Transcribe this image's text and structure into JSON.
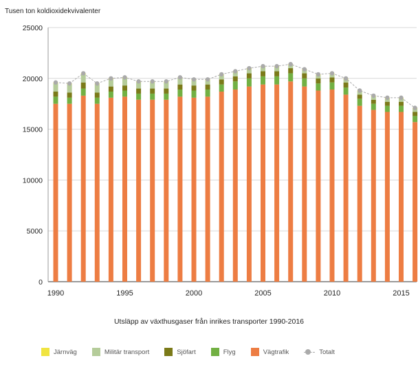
{
  "chart_data": {
    "type": "bar",
    "stacked": true,
    "title": "Utsläpp av växthusgaser från inrikes transporter 1990-2016",
    "ylabel": "Tusen ton koldioxidekvivalenter",
    "xlabel": "",
    "ylim": [
      0,
      25000
    ],
    "yticks": [
      0,
      5000,
      10000,
      15000,
      20000,
      25000
    ],
    "xtick_labels": [
      "1990",
      "1995",
      "2000",
      "2005",
      "2010",
      "2015"
    ],
    "grid": "horizontal",
    "legend_position": "bottom",
    "categories": [
      1990,
      1991,
      1992,
      1993,
      1994,
      1995,
      1996,
      1997,
      1998,
      1999,
      2000,
      2001,
      2002,
      2003,
      2004,
      2005,
      2006,
      2007,
      2008,
      2009,
      2010,
      2011,
      2012,
      2013,
      2014,
      2015,
      2016
    ],
    "series": [
      {
        "name": "Vägtrafik",
        "color": "#ed7d43",
        "values": [
          17500,
          17500,
          18300,
          17500,
          18100,
          18200,
          17900,
          17900,
          17900,
          18200,
          18100,
          18200,
          18700,
          18900,
          19200,
          19400,
          19400,
          19700,
          19200,
          18800,
          18900,
          18400,
          17300,
          16900,
          16700,
          16700,
          15700
        ]
      },
      {
        "name": "Flyg",
        "color": "#72b043",
        "values": [
          700,
          600,
          700,
          600,
          600,
          600,
          600,
          600,
          600,
          700,
          700,
          700,
          700,
          800,
          800,
          800,
          800,
          800,
          800,
          700,
          700,
          700,
          700,
          600,
          600,
          600,
          600
        ]
      },
      {
        "name": "Sjöfart",
        "color": "#7b7a19",
        "values": [
          500,
          500,
          600,
          500,
          500,
          500,
          500,
          500,
          500,
          500,
          500,
          500,
          500,
          500,
          500,
          500,
          500,
          500,
          500,
          500,
          500,
          500,
          400,
          400,
          400,
          400,
          400
        ]
      },
      {
        "name": "Militär transport",
        "color": "#b5cc9a",
        "values": [
          800,
          800,
          800,
          800,
          700,
          700,
          600,
          600,
          600,
          600,
          500,
          400,
          400,
          400,
          400,
          400,
          400,
          300,
          300,
          300,
          300,
          300,
          300,
          300,
          300,
          300,
          300
        ]
      },
      {
        "name": "Järnväg",
        "color": "#f0e441",
        "values": [
          100,
          100,
          100,
          100,
          100,
          100,
          100,
          100,
          100,
          100,
          100,
          100,
          100,
          100,
          100,
          100,
          100,
          100,
          100,
          100,
          100,
          100,
          100,
          100,
          100,
          100,
          100
        ]
      }
    ],
    "total": {
      "name": "Totalt",
      "color": "#aaaaaa",
      "values": [
        19600,
        19500,
        20500,
        19500,
        20000,
        20100,
        19700,
        19700,
        19700,
        20100,
        19900,
        19900,
        20400,
        20700,
        21000,
        21200,
        21200,
        21400,
        20900,
        20400,
        20500,
        20000,
        18800,
        18300,
        18100,
        18100,
        17100
      ]
    },
    "legend": [
      "Järnväg",
      "Militär transport",
      "Sjöfart",
      "Flyg",
      "Vägtrafik",
      "Totalt"
    ]
  }
}
